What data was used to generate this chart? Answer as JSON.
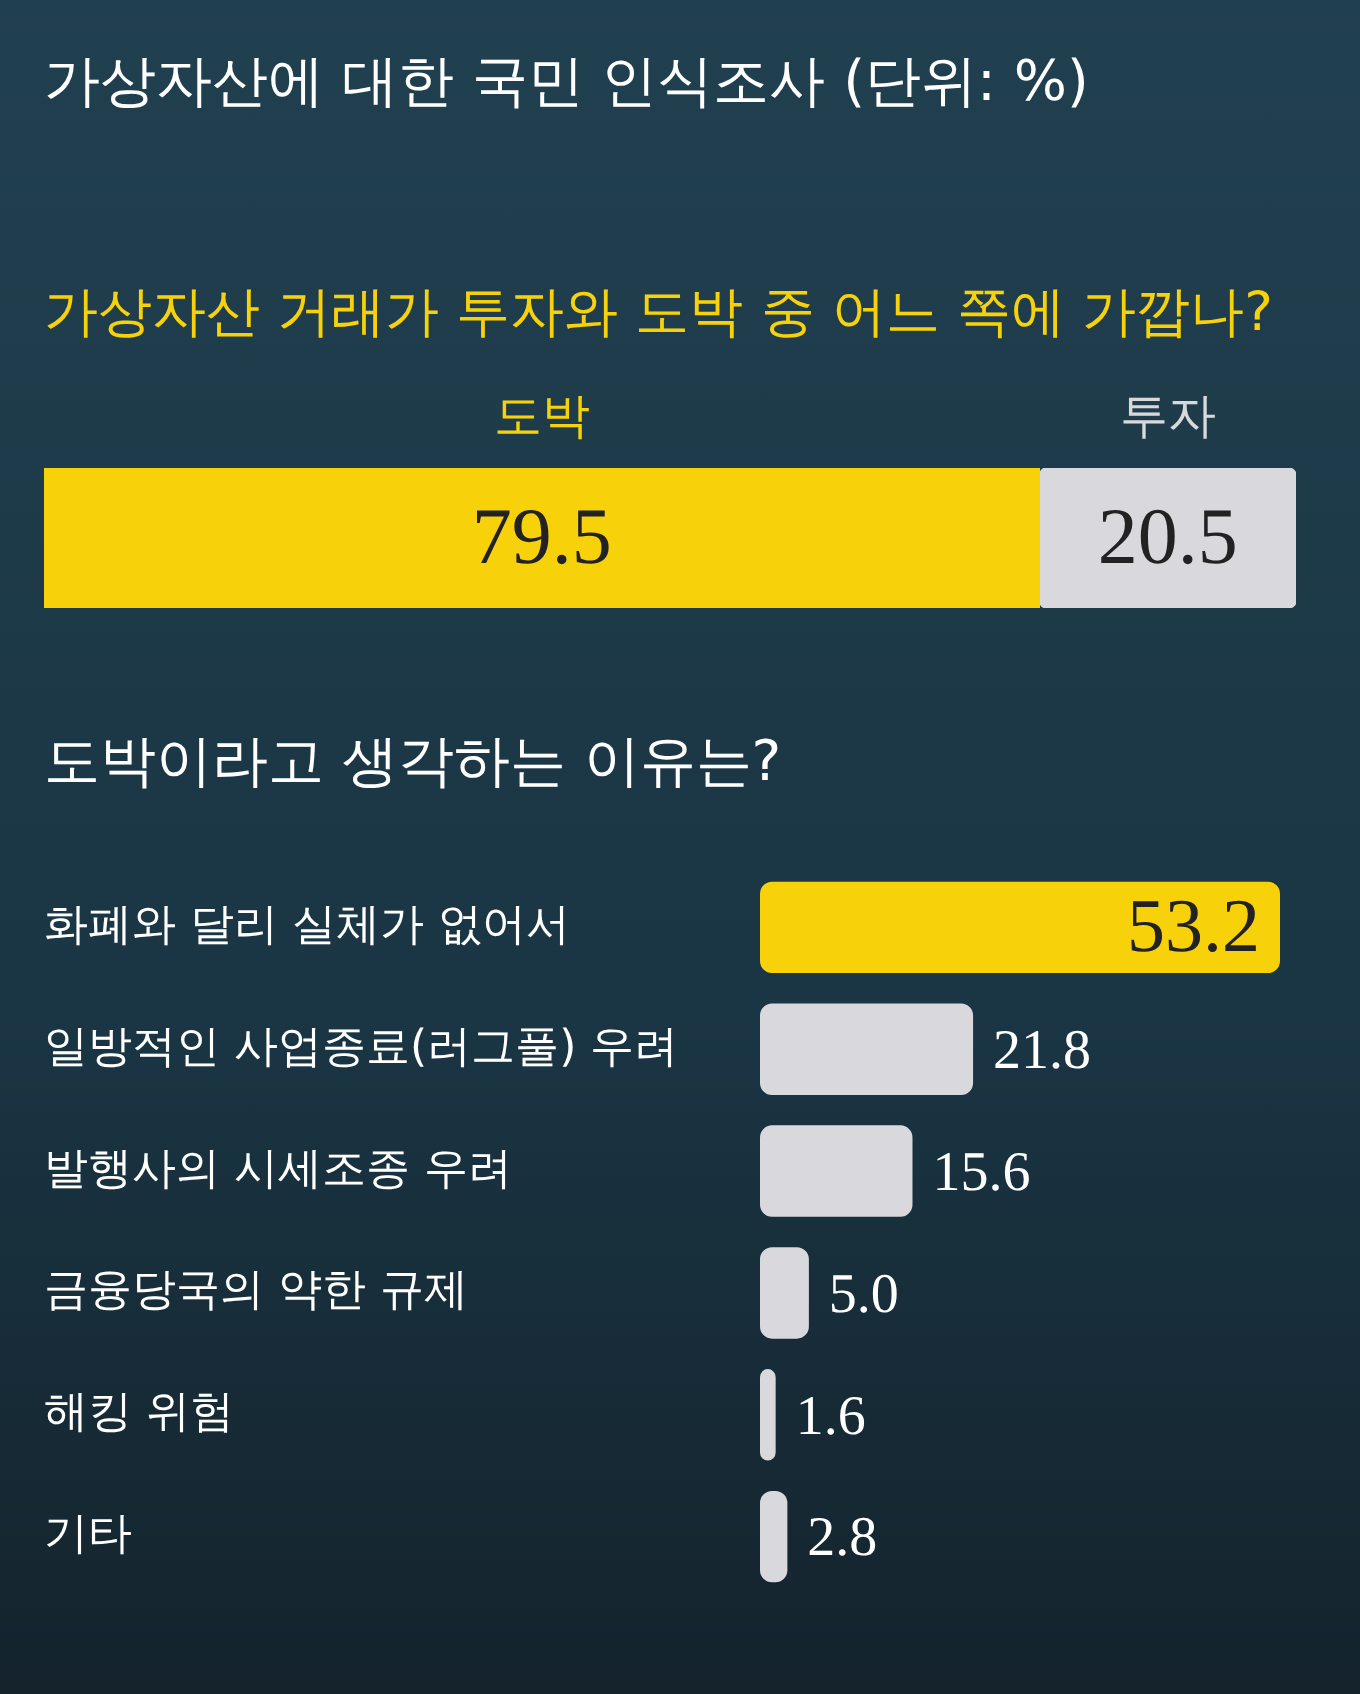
{
  "chart_data": [
    {
      "type": "bar",
      "title": "가상자산에 대한 국민 인식조사 (단위: %)",
      "subtitle": "가상자산 거래가 투자와 도박 중 어느 쪽에 가깝나?",
      "orientation": "horizontal",
      "stacked": true,
      "categories": [
        null
      ],
      "data_labels": true,
      "series": [
        {
          "name": "도박",
          "color": "#f7d20a",
          "values": [
            79.5
          ]
        },
        {
          "name": "투자",
          "color": "#d9d9dd",
          "values": [
            20.5
          ]
        }
      ]
    },
    {
      "type": "bar",
      "title": "도박이라고 생각하는 이유는?",
      "orientation": "horizontal",
      "categories": [
        "화폐와 달리 실체가 없어서",
        "일방적인 사업종료(러그풀) 우려",
        "발행사의 시세조종 우려",
        "금융당국의 약한 규제",
        "해킹 위험",
        "기타"
      ],
      "values": [
        53.2,
        21.8,
        15.6,
        5.0,
        1.6,
        2.8
      ],
      "colors": [
        "#f7d20a",
        "#d9d9dd",
        "#d9d9dd",
        "#d9d9dd",
        "#d9d9dd",
        "#d9d9dd"
      ],
      "value_labels": [
        "53.2",
        "21.8",
        "15.6",
        "5.0",
        "1.6",
        "2.8"
      ]
    }
  ]
}
